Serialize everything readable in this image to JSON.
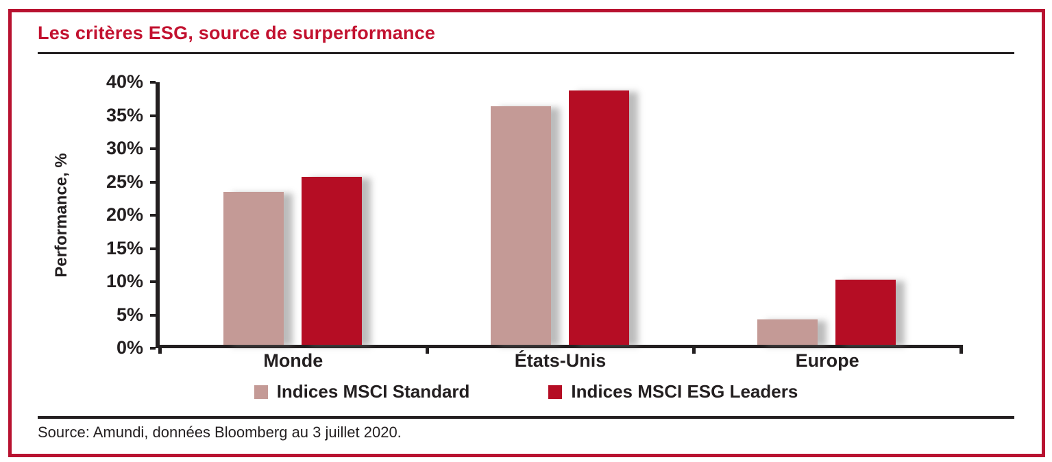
{
  "page": {
    "title": "Les critères ESG, source de surperformance",
    "source": "Source: Amundi, données Bloomberg au 3 juillet 2020."
  },
  "colors": {
    "title_red": "#c2112f",
    "frame_red": "#b81230",
    "ink": "#231f20",
    "bar_standard": "#c49a96",
    "bar_esg_leaders": "#b50d24"
  },
  "chart_data": {
    "type": "bar",
    "title": "Les critères ESG, source de surperformance",
    "categories": [
      "Monde",
      "États-Unis",
      "Europe"
    ],
    "series": [
      {
        "name": "Indices MSCI Standard",
        "color": "#c49a96",
        "values": [
          23.0,
          35.9,
          3.8
        ]
      },
      {
        "name": "Indices MSCI ESG Leaders",
        "color": "#b50d24",
        "values": [
          25.3,
          38.2,
          9.8
        ]
      }
    ],
    "xlabel": "",
    "ylabel": "Performance, %",
    "ylim": [
      0,
      40
    ],
    "ytick_step": 5,
    "ytick_labels": [
      "0%",
      "5%",
      "10%",
      "15%",
      "20%",
      "25%",
      "30%",
      "35%",
      "40%"
    ],
    "grid": false,
    "legend_position": "bottom"
  }
}
